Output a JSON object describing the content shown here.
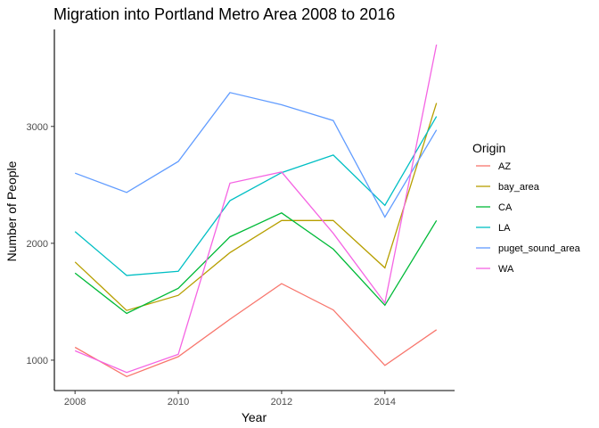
{
  "chart_data": {
    "type": "line",
    "title": "Migration into Portland Metro Area 2008 to 2016",
    "xlabel": "Year",
    "ylabel": "Number of People",
    "x": [
      2008,
      2009,
      2010,
      2011,
      2012,
      2013,
      2014,
      2015
    ],
    "x_ticks": [
      "2008",
      "2010",
      "2012",
      "2014"
    ],
    "y_ticks": [
      "1000",
      "2000",
      "3000"
    ],
    "xlim": [
      2007.6,
      2015.35
    ],
    "ylim": [
      740,
      3830
    ],
    "grid": false,
    "legend": {
      "title": "Origin",
      "position": "right"
    },
    "series": [
      {
        "name": "AZ",
        "color": "#F8766D",
        "values": [
          1110,
          860,
          1030,
          1350,
          1655,
          1430,
          955,
          1260
        ]
      },
      {
        "name": "bay_area",
        "color": "#B79F00",
        "values": [
          1840,
          1425,
          1555,
          1920,
          2195,
          2195,
          1790,
          3200
        ]
      },
      {
        "name": "CA",
        "color": "#00BA38",
        "values": [
          1745,
          1400,
          1615,
          2055,
          2260,
          1950,
          1470,
          2195
        ]
      },
      {
        "name": "LA",
        "color": "#00BFC4",
        "values": [
          2100,
          1725,
          1760,
          2365,
          2605,
          2755,
          2325,
          3085
        ]
      },
      {
        "name": "puget_sound_area",
        "color": "#619CFF",
        "values": [
          2600,
          2435,
          2700,
          3290,
          3185,
          3050,
          2225,
          2970
        ]
      },
      {
        "name": "WA",
        "color": "#F564E3",
        "values": [
          1080,
          895,
          1050,
          2515,
          2610,
          2085,
          1490,
          3700
        ]
      }
    ]
  }
}
